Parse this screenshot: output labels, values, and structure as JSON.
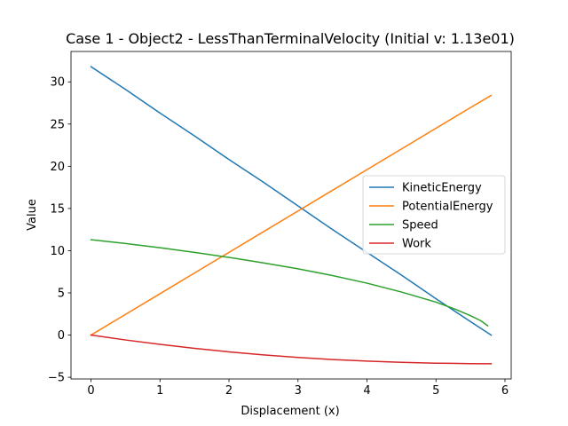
{
  "chart_data": {
    "type": "line",
    "title": "Case 1 - Object2 - LessThanTerminalVelocity (Initial v: 1.13e01)",
    "xlabel": "Displacement (x)",
    "ylabel": "Value",
    "xlim": [
      -0.29,
      6.09
    ],
    "ylim": [
      -5.2,
      33.6
    ],
    "xticks": [
      0,
      1,
      2,
      3,
      4,
      5,
      6
    ],
    "yticks": [
      -5,
      0,
      5,
      10,
      15,
      20,
      25,
      30
    ],
    "grid": false,
    "legend_position": "center-right",
    "series": [
      {
        "name": "KineticEnergy",
        "color": "#1f77b4",
        "x": [
          0,
          0.5,
          1,
          1.5,
          2,
          2.5,
          3,
          3.5,
          4,
          4.5,
          5,
          5.5,
          5.8
        ],
        "y": [
          31.8,
          29.1,
          26.3,
          23.6,
          20.8,
          18.1,
          15.3,
          12.5,
          9.8,
          7.1,
          4.3,
          1.6,
          0.0
        ]
      },
      {
        "name": "PotentialEnergy",
        "color": "#ff7f0e",
        "x": [
          0,
          0.5,
          1,
          1.5,
          2,
          2.5,
          3,
          3.5,
          4,
          4.5,
          5,
          5.5,
          5.8
        ],
        "y": [
          0.0,
          2.45,
          4.9,
          7.35,
          9.8,
          12.25,
          14.7,
          17.15,
          19.6,
          22.05,
          24.5,
          26.95,
          28.4
        ]
      },
      {
        "name": "Speed",
        "color": "#2ca02c",
        "x": [
          0,
          0.5,
          1,
          1.5,
          2,
          2.5,
          3,
          3.5,
          4,
          4.5,
          5,
          5.3,
          5.5,
          5.65,
          5.75
        ],
        "y": [
          11.3,
          10.85,
          10.35,
          9.8,
          9.2,
          8.55,
          7.85,
          7.05,
          6.15,
          5.1,
          3.9,
          3.0,
          2.3,
          1.7,
          1.1
        ]
      },
      {
        "name": "Work",
        "color": "#d62728",
        "x": [
          0,
          0.5,
          1,
          1.5,
          2,
          2.5,
          3,
          3.5,
          4,
          4.5,
          5,
          5.5,
          5.8
        ],
        "y": [
          0.0,
          -0.58,
          -1.1,
          -1.57,
          -1.99,
          -2.35,
          -2.65,
          -2.9,
          -3.09,
          -3.23,
          -3.33,
          -3.38,
          -3.4
        ]
      }
    ]
  }
}
